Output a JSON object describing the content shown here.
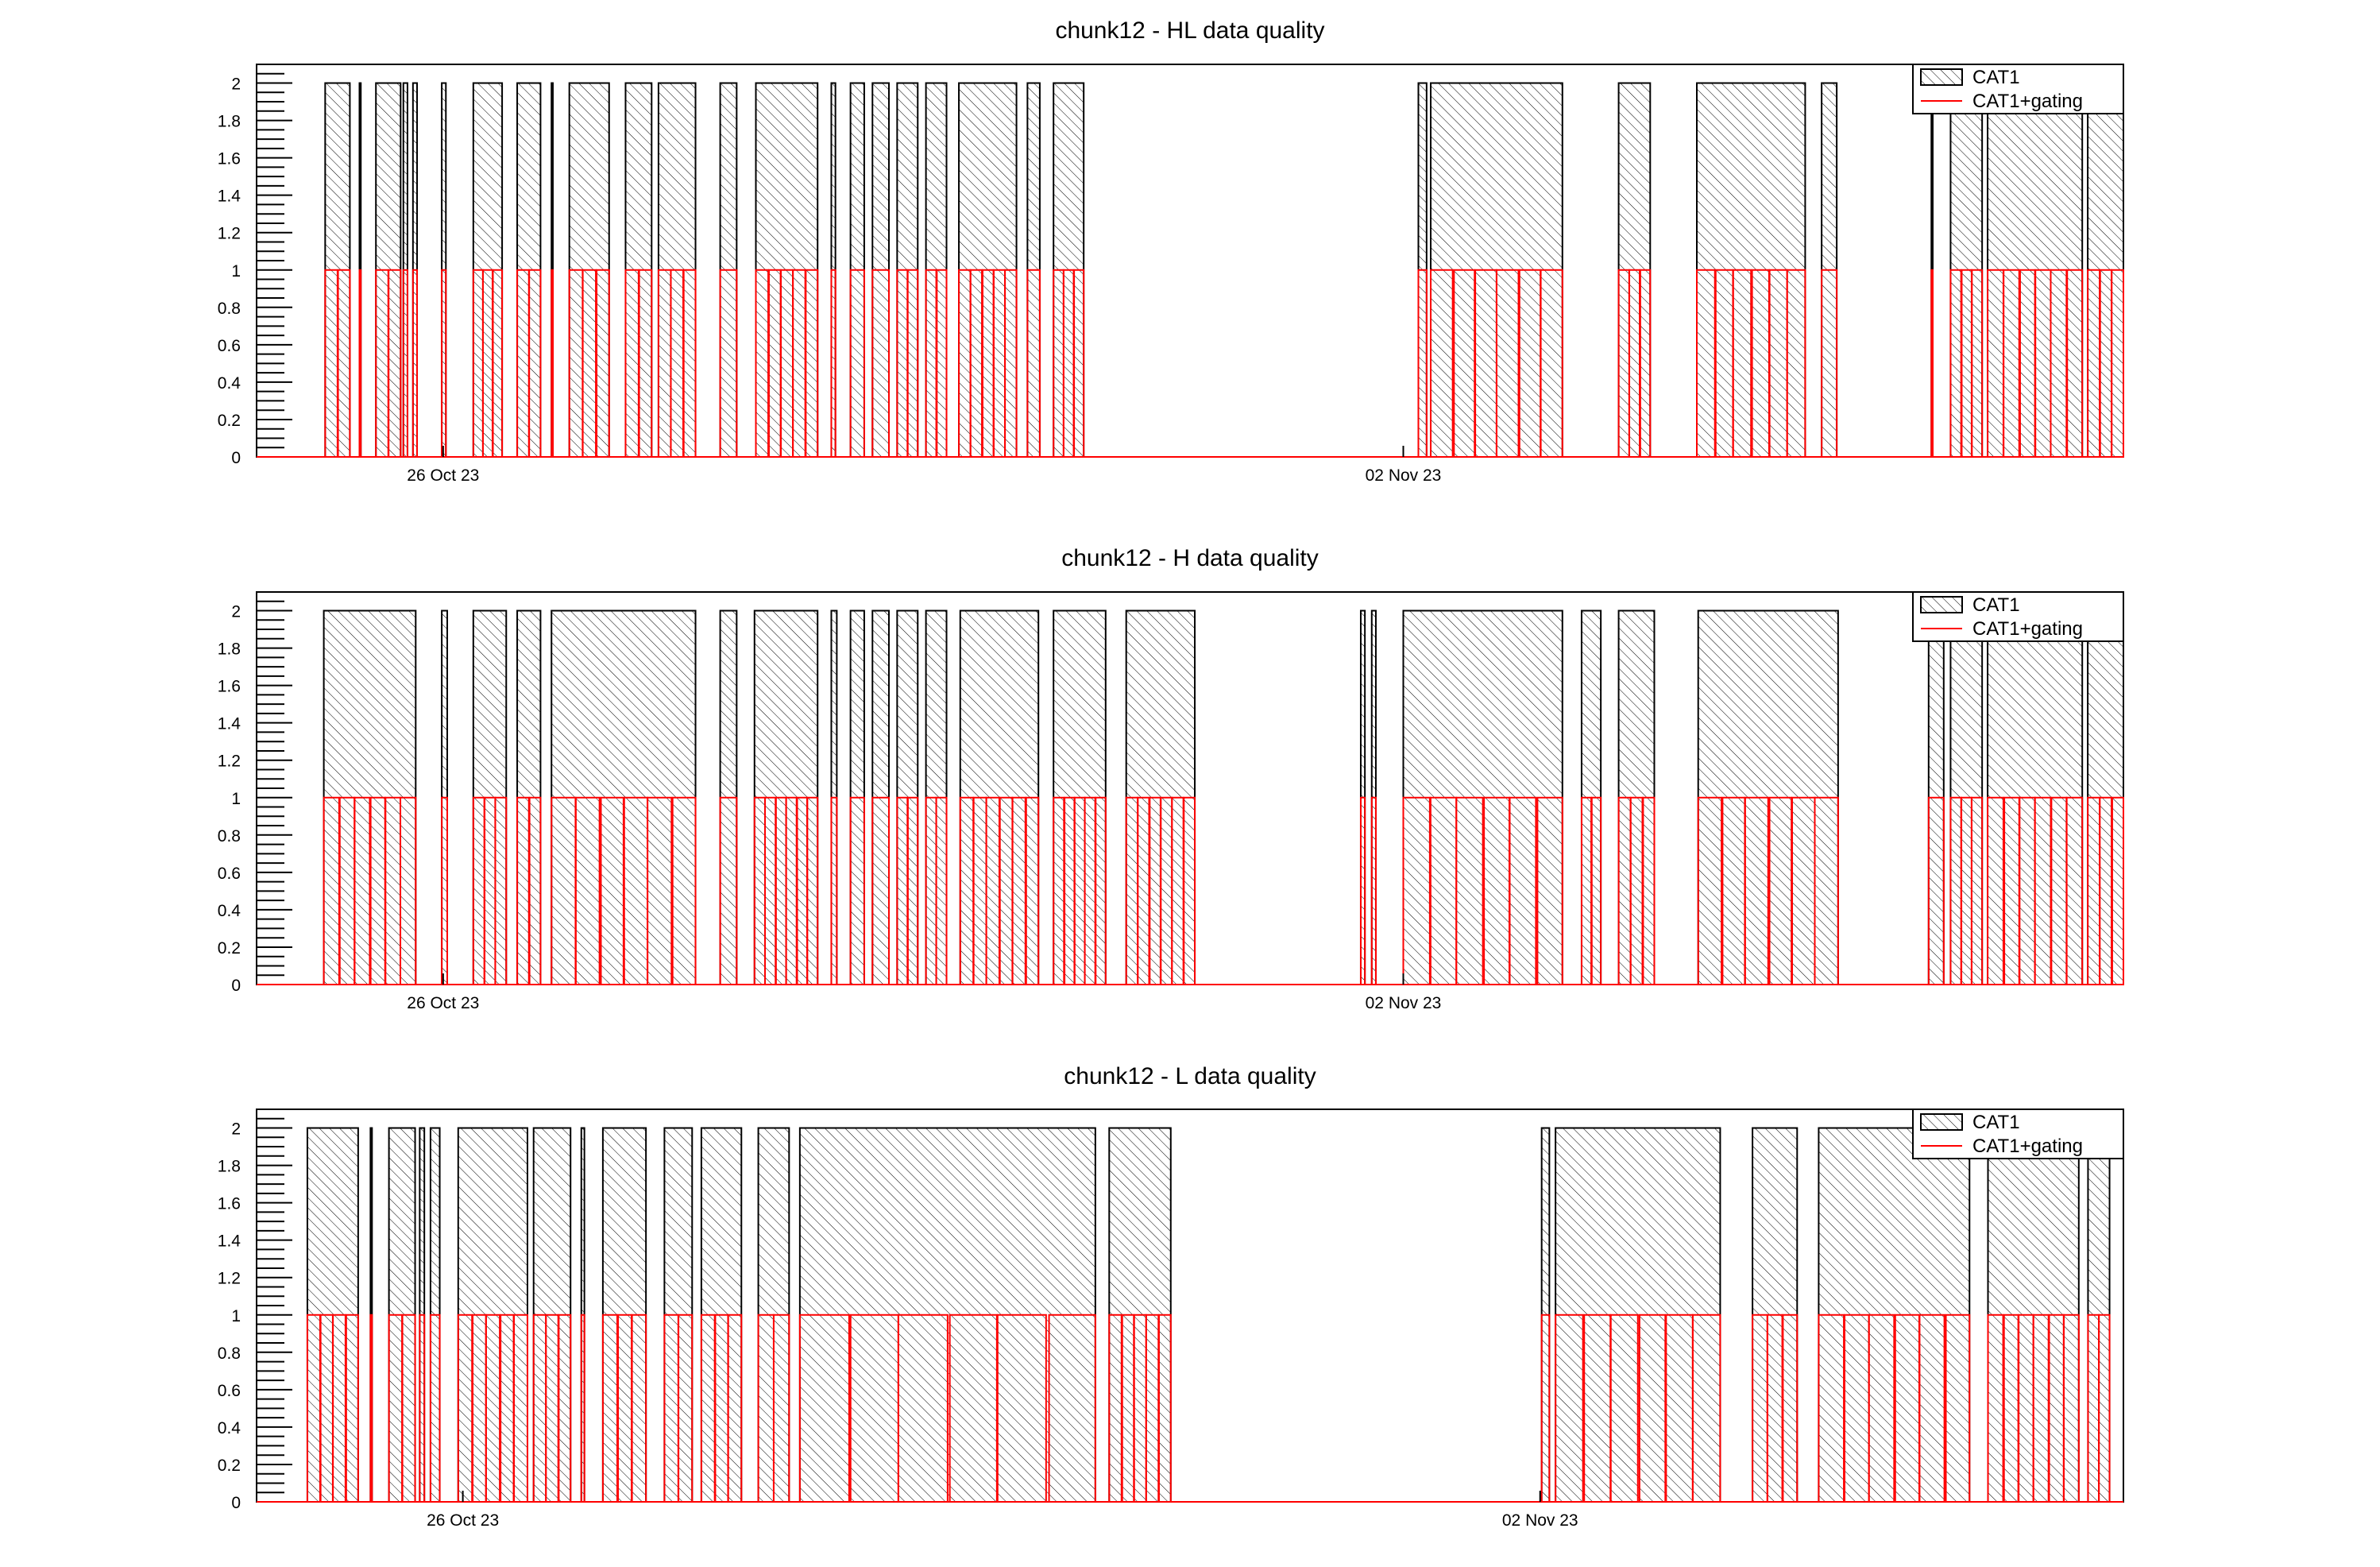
{
  "colors": {
    "cat1": "#000000",
    "gating": "#ff0000",
    "background": "#ffffff"
  },
  "chart_data": [
    {
      "type": "bar",
      "title": "chunk12 - HL data quality",
      "xlabel": "",
      "ylabel": "",
      "x_units": "days relative to 26 Oct 23 00:00",
      "xlim": [
        -1.36,
        12.25
      ],
      "ylim": [
        0,
        2.1
      ],
      "yticks": [
        0,
        0.2,
        0.4,
        0.6,
        0.8,
        1,
        1.2,
        1.4,
        1.6,
        1.8,
        2
      ],
      "ytick_labels": [
        "0",
        "0.2",
        "0.4",
        "0.6",
        "0.8",
        "1",
        "1.2",
        "1.4",
        "1.6",
        "1.8",
        "2"
      ],
      "xticks": [
        {
          "value": 0,
          "label": "26 Oct 23"
        },
        {
          "value": 7,
          "label": "02 Nov 23"
        }
      ],
      "legend": {
        "position": "top-right",
        "entries": [
          {
            "label": "CAT1",
            "style": "hatched"
          },
          {
            "label": "CAT1+gating",
            "style": "red-line"
          }
        ]
      },
      "series": [
        {
          "name": "CAT1",
          "value": 2,
          "segments": [
            [
              -0.86,
              -0.68
            ],
            [
              -0.61,
              -0.6
            ],
            [
              -0.49,
              -0.31
            ],
            [
              -0.29,
              -0.26
            ],
            [
              -0.22,
              -0.19
            ],
            [
              -0.01,
              0.02
            ],
            [
              0.22,
              0.43
            ],
            [
              0.54,
              0.71
            ],
            [
              0.79,
              0.8
            ],
            [
              0.92,
              1.21
            ],
            [
              1.33,
              1.52
            ],
            [
              1.57,
              1.84
            ],
            [
              2.02,
              2.14
            ],
            [
              2.28,
              2.73
            ],
            [
              2.83,
              2.86
            ],
            [
              2.97,
              3.07
            ],
            [
              3.13,
              3.25
            ],
            [
              3.31,
              3.46
            ],
            [
              3.52,
              3.67
            ],
            [
              3.76,
              4.18
            ],
            [
              4.26,
              4.35
            ],
            [
              4.45,
              4.67
            ],
            [
              7.11,
              7.17
            ],
            [
              7.2,
              8.16
            ],
            [
              8.57,
              8.8
            ],
            [
              9.14,
              9.93
            ],
            [
              10.05,
              10.16
            ],
            [
              10.85,
              10.86
            ],
            [
              10.99,
              11.22
            ],
            [
              11.26,
              11.95
            ],
            [
              11.99,
              12.25
            ]
          ]
        },
        {
          "name": "CAT1+gating",
          "value": 1,
          "subdivisions_per_segment": 6
        }
      ]
    },
    {
      "type": "bar",
      "title": "chunk12 - H data quality",
      "xlabel": "",
      "ylabel": "",
      "x_units": "days relative to 26 Oct 23 00:00",
      "xlim": [
        -1.36,
        12.25
      ],
      "ylim": [
        0,
        2.1
      ],
      "yticks": [
        0,
        0.2,
        0.4,
        0.6,
        0.8,
        1,
        1.2,
        1.4,
        1.6,
        1.8,
        2
      ],
      "ytick_labels": [
        "0",
        "0.2",
        "0.4",
        "0.6",
        "0.8",
        "1",
        "1.2",
        "1.4",
        "1.6",
        "1.8",
        "2"
      ],
      "xticks": [
        {
          "value": 0,
          "label": "26 Oct 23"
        },
        {
          "value": 7,
          "label": "02 Nov 23"
        }
      ],
      "legend": {
        "position": "top-right",
        "entries": [
          {
            "label": "CAT1",
            "style": "hatched"
          },
          {
            "label": "CAT1+gating",
            "style": "red-line"
          }
        ]
      },
      "series": [
        {
          "name": "CAT1",
          "value": 2,
          "segments": [
            [
              -0.87,
              -0.2
            ],
            [
              -0.01,
              0.03
            ],
            [
              0.22,
              0.46
            ],
            [
              0.54,
              0.71
            ],
            [
              0.79,
              1.84
            ],
            [
              2.02,
              2.14
            ],
            [
              2.27,
              2.73
            ],
            [
              2.83,
              2.87
            ],
            [
              2.97,
              3.07
            ],
            [
              3.13,
              3.25
            ],
            [
              3.31,
              3.46
            ],
            [
              3.52,
              3.67
            ],
            [
              3.77,
              4.34
            ],
            [
              4.45,
              4.83
            ],
            [
              4.98,
              5.48
            ],
            [
              6.69,
              6.72
            ],
            [
              6.77,
              6.8
            ],
            [
              7.0,
              8.16
            ],
            [
              8.3,
              8.44
            ],
            [
              8.57,
              8.83
            ],
            [
              9.15,
              10.17
            ],
            [
              10.83,
              10.94
            ],
            [
              10.99,
              11.22
            ],
            [
              11.26,
              11.95
            ],
            [
              11.99,
              12.25
            ]
          ]
        },
        {
          "name": "CAT1+gating",
          "value": 1,
          "subdivisions_per_segment": 6
        }
      ]
    },
    {
      "type": "bar",
      "title": "chunk12 - L data quality",
      "xlabel": "",
      "ylabel": "",
      "x_units": "days relative to 26 Oct 23 00:00",
      "xlim": [
        -1.34,
        10.79
      ],
      "ylim": [
        0,
        2.1
      ],
      "yticks": [
        0,
        0.2,
        0.4,
        0.6,
        0.8,
        1,
        1.2,
        1.4,
        1.6,
        1.8,
        2
      ],
      "ytick_labels": [
        "0",
        "0.2",
        "0.4",
        "0.6",
        "0.8",
        "1",
        "1.2",
        "1.4",
        "1.6",
        "1.8",
        "2"
      ],
      "xticks": [
        {
          "value": 0,
          "label": "26 Oct 23"
        },
        {
          "value": 7,
          "label": "02 Nov 23"
        }
      ],
      "legend": {
        "position": "top-right",
        "entries": [
          {
            "label": "CAT1",
            "style": "hatched"
          },
          {
            "label": "CAT1+gating",
            "style": "red-line"
          }
        ]
      },
      "series": [
        {
          "name": "CAT1",
          "value": 2,
          "segments": [
            [
              -1.01,
              -0.68
            ],
            [
              -0.6,
              -0.59
            ],
            [
              -0.48,
              -0.31
            ],
            [
              -0.28,
              -0.25
            ],
            [
              -0.21,
              -0.15
            ],
            [
              -0.03,
              0.42
            ],
            [
              0.46,
              0.7
            ],
            [
              0.77,
              0.79
            ],
            [
              0.91,
              1.19
            ],
            [
              1.31,
              1.49
            ],
            [
              1.55,
              1.81
            ],
            [
              1.92,
              2.12
            ],
            [
              2.19,
              4.11
            ],
            [
              4.2,
              4.6
            ],
            [
              7.01,
              7.06
            ],
            [
              7.1,
              8.17
            ],
            [
              8.38,
              8.67
            ],
            [
              8.81,
              9.79
            ],
            [
              9.91,
              10.5
            ],
            [
              10.56,
              10.7
            ]
          ]
        },
        {
          "name": "CAT1+gating",
          "value": 1,
          "subdivisions_per_segment": 6
        }
      ]
    }
  ]
}
